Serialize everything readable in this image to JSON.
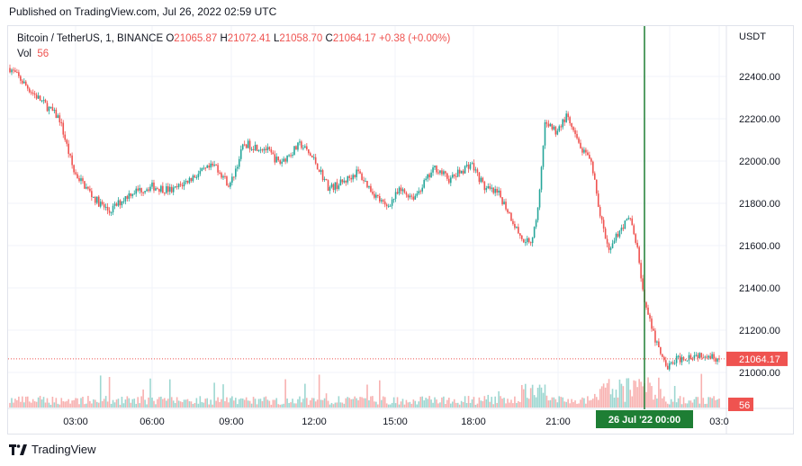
{
  "header": {
    "published": "Published on TradingView.com, Jul 26, 2022 02:59 UTC"
  },
  "legend": {
    "symbol": "Bitcoin / TetherUS, 1, BINANCE",
    "open_label": "O",
    "open": "21065.87",
    "high_label": "H",
    "high": "21072.41",
    "low_label": "L",
    "low": "21058.70",
    "close_label": "C",
    "close": "21064.17",
    "change": "+0.38 (+0.00%)",
    "vol_label": "Vol",
    "vol": "56"
  },
  "footer": {
    "brand": "TradingView"
  },
  "colors": {
    "up": "#26a69a",
    "down": "#ef5350",
    "crosshair": "#1e7e34",
    "grid": "#f0f3fa"
  },
  "chart_data": {
    "type": "candlestick",
    "price_axis": {
      "unit": "USDT",
      "ticks": [
        22400,
        22200,
        22000,
        21800,
        21600,
        21400,
        21200,
        21000
      ],
      "range": [
        20900,
        22550
      ]
    },
    "time_axis": {
      "ticks": [
        "03:00",
        "06:00",
        "09:00",
        "12:00",
        "15:00",
        "18:00",
        "21:00",
        "00:00",
        "03:0"
      ],
      "highlight": {
        "date": "26 Jul '22",
        "time": "00:00"
      }
    },
    "last_price": 21064.17,
    "last_price_label": "21064.17",
    "last_volume_label": "56",
    "price_path": [
      [
        0.0,
        22440
      ],
      [
        0.03,
        22330
      ],
      [
        0.07,
        22200
      ],
      [
        0.09,
        21950
      ],
      [
        0.12,
        21820
      ],
      [
        0.14,
        21760
      ],
      [
        0.17,
        21850
      ],
      [
        0.2,
        21880
      ],
      [
        0.23,
        21860
      ],
      [
        0.26,
        21930
      ],
      [
        0.29,
        21980
      ],
      [
        0.31,
        21880
      ],
      [
        0.33,
        22080
      ],
      [
        0.36,
        22060
      ],
      [
        0.38,
        21990
      ],
      [
        0.41,
        22080
      ],
      [
        0.43,
        22000
      ],
      [
        0.45,
        21870
      ],
      [
        0.47,
        21900
      ],
      [
        0.49,
        21950
      ],
      [
        0.51,
        21860
      ],
      [
        0.53,
        21780
      ],
      [
        0.55,
        21860
      ],
      [
        0.57,
        21830
      ],
      [
        0.6,
        21970
      ],
      [
        0.62,
        21910
      ],
      [
        0.65,
        21990
      ],
      [
        0.67,
        21870
      ],
      [
        0.69,
        21840
      ],
      [
        0.7,
        21780
      ],
      [
        0.72,
        21640
      ],
      [
        0.735,
        21620
      ],
      [
        0.745,
        21780
      ],
      [
        0.755,
        22190
      ],
      [
        0.77,
        22140
      ],
      [
        0.785,
        22210
      ],
      [
        0.8,
        22090
      ],
      [
        0.82,
        21980
      ],
      [
        0.835,
        21700
      ],
      [
        0.845,
        21560
      ],
      [
        0.86,
        21680
      ],
      [
        0.875,
        21730
      ],
      [
        0.885,
        21580
      ],
      [
        0.895,
        21320
      ],
      [
        0.91,
        21150
      ],
      [
        0.925,
        21020
      ],
      [
        0.94,
        21060
      ],
      [
        0.96,
        21080
      ],
      [
        0.98,
        21090
      ],
      [
        1.0,
        21064
      ]
    ]
  }
}
